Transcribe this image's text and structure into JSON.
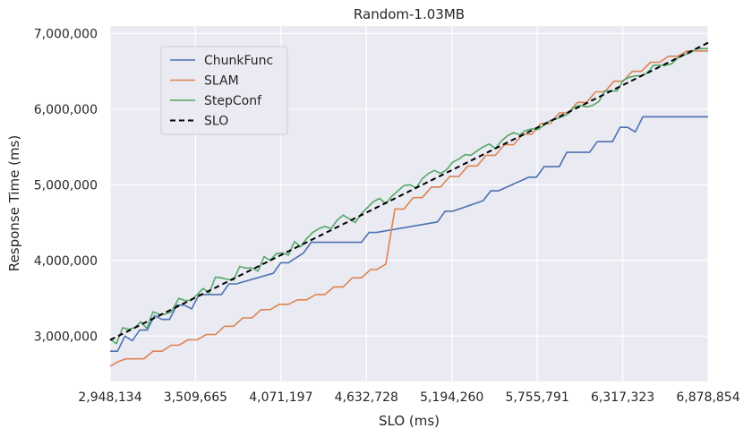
{
  "chart_data": {
    "type": "line",
    "title": "Random-1.03MB",
    "xlabel": "SLO (ms)",
    "ylabel": "Response Time (ms)",
    "xlim": [
      2948134,
      6878854
    ],
    "ylim": [
      2400000,
      7100000
    ],
    "x_ticks": [
      2948134,
      3509665,
      4071197,
      4632728,
      5194260,
      5755791,
      6317323,
      6878854
    ],
    "x_tick_labels": [
      "2,948,134",
      "3,509,665",
      "4,071,197",
      "4,632,728",
      "5,194,260",
      "5,755,791",
      "6,317,323",
      "6,878,854"
    ],
    "y_ticks": [
      3000000,
      4000000,
      5000000,
      6000000,
      7000000
    ],
    "y_tick_labels": [
      "3,000,000",
      "4,000,000",
      "5,000,000",
      "6,000,000",
      "7,000,000"
    ],
    "grid": true,
    "legend_position": "upper-left",
    "background": "#eaeaf2",
    "series": [
      {
        "name": "ChunkFunc",
        "color": "#4c72b0",
        "dash": "solid",
        "x": [
          2948134,
          2997000,
          3045000,
          3094000,
          3143000,
          3192000,
          3240000,
          3289000,
          3338000,
          3387000,
          3436000,
          3484000,
          3533000,
          3582000,
          3680000,
          3729000,
          3778000,
          4020000,
          4070000,
          4120000,
          4220000,
          4270000,
          4600000,
          4650000,
          4700000,
          5100000,
          5150000,
          5200000,
          5400000,
          5450000,
          5500000,
          5700000,
          5750000,
          5800000,
          5900000,
          5950000,
          6000000,
          6100000,
          6150000,
          6200000,
          6250000,
          6300000,
          6350000,
          6400000,
          6450000,
          6500000,
          6878854
        ],
        "y": [
          2800000,
          2800000,
          3000000,
          2940000,
          3080000,
          3080000,
          3270000,
          3220000,
          3220000,
          3410000,
          3410000,
          3360000,
          3550000,
          3550000,
          3550000,
          3690000,
          3690000,
          3830000,
          3970000,
          3970000,
          4100000,
          4240000,
          4240000,
          4370000,
          4370000,
          4510000,
          4650000,
          4650000,
          4790000,
          4920000,
          4920000,
          5100000,
          5100000,
          5240000,
          5240000,
          5430000,
          5430000,
          5430000,
          5570000,
          5570000,
          5570000,
          5760000,
          5760000,
          5700000,
          5900000,
          5900000,
          5900000
        ]
      },
      {
        "name": "SLAM",
        "color": "#dd8452",
        "dash": "solid",
        "x": [
          2948134,
          3000000,
          3050000,
          3120000,
          3170000,
          3230000,
          3290000,
          3350000,
          3400000,
          3460000,
          3520000,
          3580000,
          3640000,
          3700000,
          3760000,
          3820000,
          3880000,
          3940000,
          4000000,
          4060000,
          4120000,
          4180000,
          4240000,
          4300000,
          4360000,
          4420000,
          4480000,
          4540000,
          4600000,
          4660000,
          4700000,
          4760000,
          4820000,
          4880000,
          4940000,
          5000000,
          5060000,
          5120000,
          5180000,
          5240000,
          5300000,
          5360000,
          5420000,
          5480000,
          5540000,
          5600000,
          5660000,
          5720000,
          5780000,
          5840000,
          5900000,
          5960000,
          6020000,
          6080000,
          6140000,
          6200000,
          6260000,
          6320000,
          6380000,
          6440000,
          6500000,
          6560000,
          6620000,
          6680000,
          6740000,
          6800000,
          6878854
        ],
        "y": [
          2600000,
          2660000,
          2700000,
          2700000,
          2700000,
          2800000,
          2800000,
          2880000,
          2880000,
          2950000,
          2950000,
          3020000,
          3020000,
          3130000,
          3130000,
          3240000,
          3240000,
          3350000,
          3350000,
          3420000,
          3420000,
          3480000,
          3480000,
          3550000,
          3550000,
          3650000,
          3650000,
          3770000,
          3770000,
          3880000,
          3880000,
          3950000,
          4680000,
          4680000,
          4830000,
          4830000,
          4970000,
          4970000,
          5110000,
          5110000,
          5250000,
          5250000,
          5390000,
          5390000,
          5530000,
          5530000,
          5670000,
          5670000,
          5810000,
          5810000,
          5950000,
          5950000,
          6090000,
          6090000,
          6230000,
          6230000,
          6370000,
          6370000,
          6500000,
          6500000,
          6620000,
          6620000,
          6700000,
          6700000,
          6770000,
          6770000,
          6770000
        ]
      },
      {
        "name": "StepConf",
        "color": "#55a868",
        "dash": "solid",
        "x": [
          2948134,
          2990000,
          3030000,
          3070000,
          3110000,
          3150000,
          3190000,
          3230000,
          3270000,
          3310000,
          3350000,
          3400000,
          3440000,
          3480000,
          3520000,
          3560000,
          3600000,
          3640000,
          3680000,
          3720000,
          3760000,
          3800000,
          3840000,
          3880000,
          3920000,
          3960000,
          4000000,
          4040000,
          4080000,
          4120000,
          4160000,
          4200000,
          4240000,
          4280000,
          4320000,
          4360000,
          4400000,
          4440000,
          4480000,
          4520000,
          4560000,
          4600000,
          4640000,
          4680000,
          4720000,
          4760000,
          4800000,
          4840000,
          4880000,
          4920000,
          4960000,
          5000000,
          5040000,
          5080000,
          5120000,
          5160000,
          5200000,
          5240000,
          5280000,
          5320000,
          5360000,
          5400000,
          5440000,
          5480000,
          5520000,
          5560000,
          5600000,
          5640000,
          5680000,
          5720000,
          5760000,
          5800000,
          5840000,
          5880000,
          5920000,
          5960000,
          6000000,
          6040000,
          6080000,
          6120000,
          6160000,
          6200000,
          6240000,
          6280000,
          6320000,
          6360000,
          6400000,
          6440000,
          6480000,
          6520000,
          6560000,
          6600000,
          6640000,
          6680000,
          6720000,
          6760000,
          6800000,
          6878854
        ],
        "y": [
          2960000,
          2900000,
          3110000,
          3090000,
          3110000,
          3190000,
          3100000,
          3320000,
          3290000,
          3290000,
          3320000,
          3500000,
          3470000,
          3470000,
          3550000,
          3630000,
          3570000,
          3780000,
          3770000,
          3750000,
          3740000,
          3920000,
          3900000,
          3900000,
          3860000,
          4050000,
          4000000,
          4090000,
          4100000,
          4070000,
          4250000,
          4180000,
          4290000,
          4370000,
          4420000,
          4450000,
          4420000,
          4530000,
          4600000,
          4550000,
          4500000,
          4620000,
          4700000,
          4780000,
          4820000,
          4750000,
          4850000,
          4920000,
          4990000,
          5000000,
          4960000,
          5080000,
          5150000,
          5190000,
          5150000,
          5200000,
          5300000,
          5340000,
          5400000,
          5390000,
          5450000,
          5500000,
          5540000,
          5480000,
          5580000,
          5650000,
          5690000,
          5660000,
          5720000,
          5740000,
          5730000,
          5790000,
          5850000,
          5870000,
          5900000,
          5940000,
          6030000,
          6050000,
          6030000,
          6050000,
          6100000,
          6240000,
          6240000,
          6240000,
          6380000,
          6420000,
          6440000,
          6440000,
          6480000,
          6580000,
          6580000,
          6580000,
          6600000,
          6680000,
          6720000,
          6740000,
          6800000,
          6800000
        ]
      },
      {
        "name": "SLO",
        "color": "#000000",
        "dash": "dashed",
        "x": [
          2948134,
          6878854
        ],
        "y": [
          2948134,
          6878854
        ]
      }
    ]
  }
}
